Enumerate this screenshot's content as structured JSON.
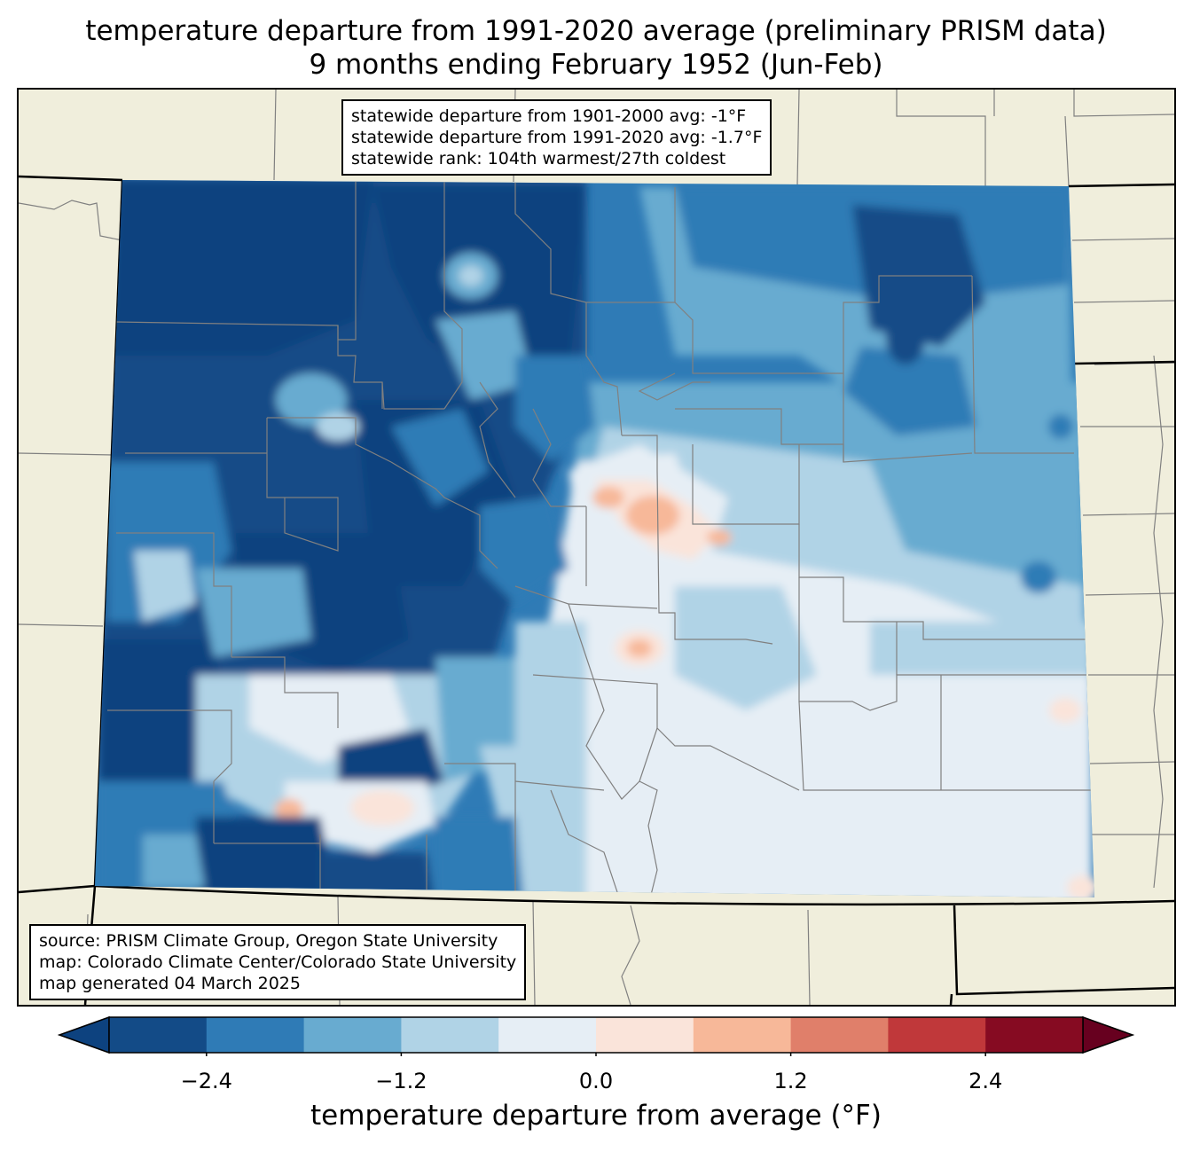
{
  "title": {
    "line1": "temperature departure from 1991-2020 average (preliminary PRISM data)",
    "line2": "9 months ending February 1952 (Jun-Feb)"
  },
  "stats_box": {
    "lines": [
      "statewide departure from 1901-2000 avg: -1°F",
      "statewide departure from 1991-2020 avg: -1.7°F",
      "statewide rank: 104th warmest/27th coldest"
    ]
  },
  "credits_box": {
    "lines": [
      "source: PRISM Climate Group, Oregon State University",
      "map: Colorado Climate Center/Colorado State University",
      "map generated 04 March 2025"
    ]
  },
  "colorbar": {
    "label": "temperature departure from average (°F)",
    "ticks": [
      "−2.4",
      "−1.2",
      "0.0",
      "1.2",
      "2.4"
    ],
    "tick_values": [
      -2.4,
      -1.2,
      0.0,
      1.2,
      2.4
    ],
    "range": [
      -3.0,
      3.0
    ],
    "bin_edges": [
      -3.0,
      -2.4,
      -1.8,
      -1.2,
      -0.6,
      0.0,
      0.6,
      1.2,
      1.8,
      2.4,
      3.0
    ],
    "extend": "both",
    "colors": [
      "#0d427f",
      "#134b87",
      "#2f7bb6",
      "#68abd0",
      "#b0d3e6",
      "#e6eef5",
      "#fae4da",
      "#f7b899",
      "#e07f6a",
      "#c0383a",
      "#860b22",
      "#67001f"
    ]
  },
  "map": {
    "land_color": "#f0eedc",
    "state_border_color": "#000000",
    "county_border_color": "#808080"
  }
}
